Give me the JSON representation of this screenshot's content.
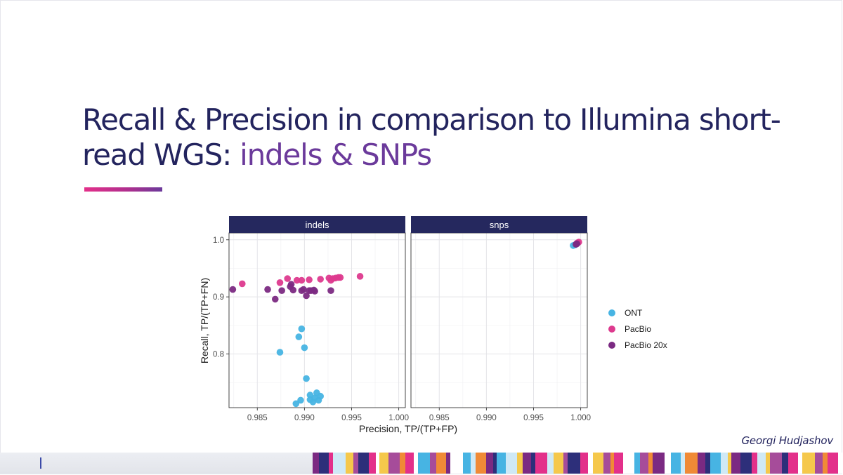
{
  "slide": {
    "title_main": "Recall & Precision in comparison to Illumina short-read WGS: ",
    "title_accent": "indels & SNPs",
    "author": "Georgi Hudjashov"
  },
  "colors": {
    "title": "#23245e",
    "accent": "#6b3a9b",
    "strip": "#25285e",
    "ONT": "#47b4e3",
    "PacBio": "#dd3a8e",
    "PacBio 20x": "#7b2a82"
  },
  "chart_data": {
    "type": "scatter",
    "xlabel": "Precision, TP/(TP+FP)",
    "ylabel": "Recall, TP/(TP+FN)",
    "xlim": [
      0.982,
      1.0007
    ],
    "ylim": [
      0.706,
      1.012
    ],
    "x_ticks": [
      0.985,
      0.99,
      0.995,
      1.0
    ],
    "x_tick_labels": [
      "0.985",
      "0.990",
      "0.995",
      "1.000"
    ],
    "y_ticks": [
      0.8,
      0.9,
      1.0
    ],
    "y_tick_labels": [
      "0.8",
      "0.9",
      "1.0"
    ],
    "grid": true,
    "legend_position": "right",
    "facets": [
      {
        "name": "indels",
        "series": [
          {
            "name": "ONT",
            "points": [
              [
                0.9874,
                0.803
              ],
              [
                0.9891,
                0.713
              ],
              [
                0.9894,
                0.83
              ],
              [
                0.9896,
                0.719
              ],
              [
                0.9897,
                0.844
              ],
              [
                0.99,
                0.811
              ],
              [
                0.9902,
                0.757
              ],
              [
                0.9906,
                0.728
              ],
              [
                0.9906,
                0.72
              ],
              [
                0.9909,
                0.716
              ],
              [
                0.9911,
                0.723
              ],
              [
                0.9913,
                0.732
              ],
              [
                0.9915,
                0.719
              ],
              [
                0.9917,
                0.726
              ]
            ]
          },
          {
            "name": "PacBio",
            "points": [
              [
                0.9834,
                0.923
              ],
              [
                0.9874,
                0.925
              ],
              [
                0.9882,
                0.932
              ],
              [
                0.9892,
                0.929
              ],
              [
                0.9897,
                0.929
              ],
              [
                0.9905,
                0.93
              ],
              [
                0.9917,
                0.931
              ],
              [
                0.9926,
                0.933
              ],
              [
                0.9928,
                0.929
              ],
              [
                0.993,
                0.932
              ],
              [
                0.9933,
                0.933
              ],
              [
                0.9936,
                0.934
              ],
              [
                0.9938,
                0.934
              ],
              [
                0.9959,
                0.936
              ]
            ]
          },
          {
            "name": "PacBio 20x",
            "points": [
              [
                0.9824,
                0.913
              ],
              [
                0.9861,
                0.913
              ],
              [
                0.9869,
                0.896
              ],
              [
                0.9876,
                0.911
              ],
              [
                0.9885,
                0.918
              ],
              [
                0.9886,
                0.922
              ],
              [
                0.9888,
                0.912
              ],
              [
                0.9897,
                0.911
              ],
              [
                0.9899,
                0.913
              ],
              [
                0.9902,
                0.902
              ],
              [
                0.9905,
                0.911
              ],
              [
                0.9907,
                0.911
              ],
              [
                0.991,
                0.912
              ],
              [
                0.9911,
                0.91
              ],
              [
                0.9928,
                0.911
              ]
            ]
          }
        ]
      },
      {
        "name": "snps",
        "series": [
          {
            "name": "ONT",
            "points": [
              [
                0.9992,
                0.99
              ],
              [
                0.9994,
                0.991
              ]
            ]
          },
          {
            "name": "PacBio",
            "points": [
              [
                0.9996,
                0.994
              ],
              [
                0.9997,
                0.995
              ],
              [
                0.9998,
                0.996
              ]
            ]
          },
          {
            "name": "PacBio 20x",
            "points": [
              [
                0.9995,
                0.992
              ],
              [
                0.9996,
                0.993
              ]
            ]
          }
        ]
      }
    ]
  },
  "footer": {
    "stripe_colors": [
      "#7b2a82",
      "#e3308a",
      "#47b4e3",
      "#f5c84b",
      "#f08a36",
      "#2d2f7a",
      "#ffffff",
      "#cfe9f6",
      "#a64c9a"
    ]
  }
}
